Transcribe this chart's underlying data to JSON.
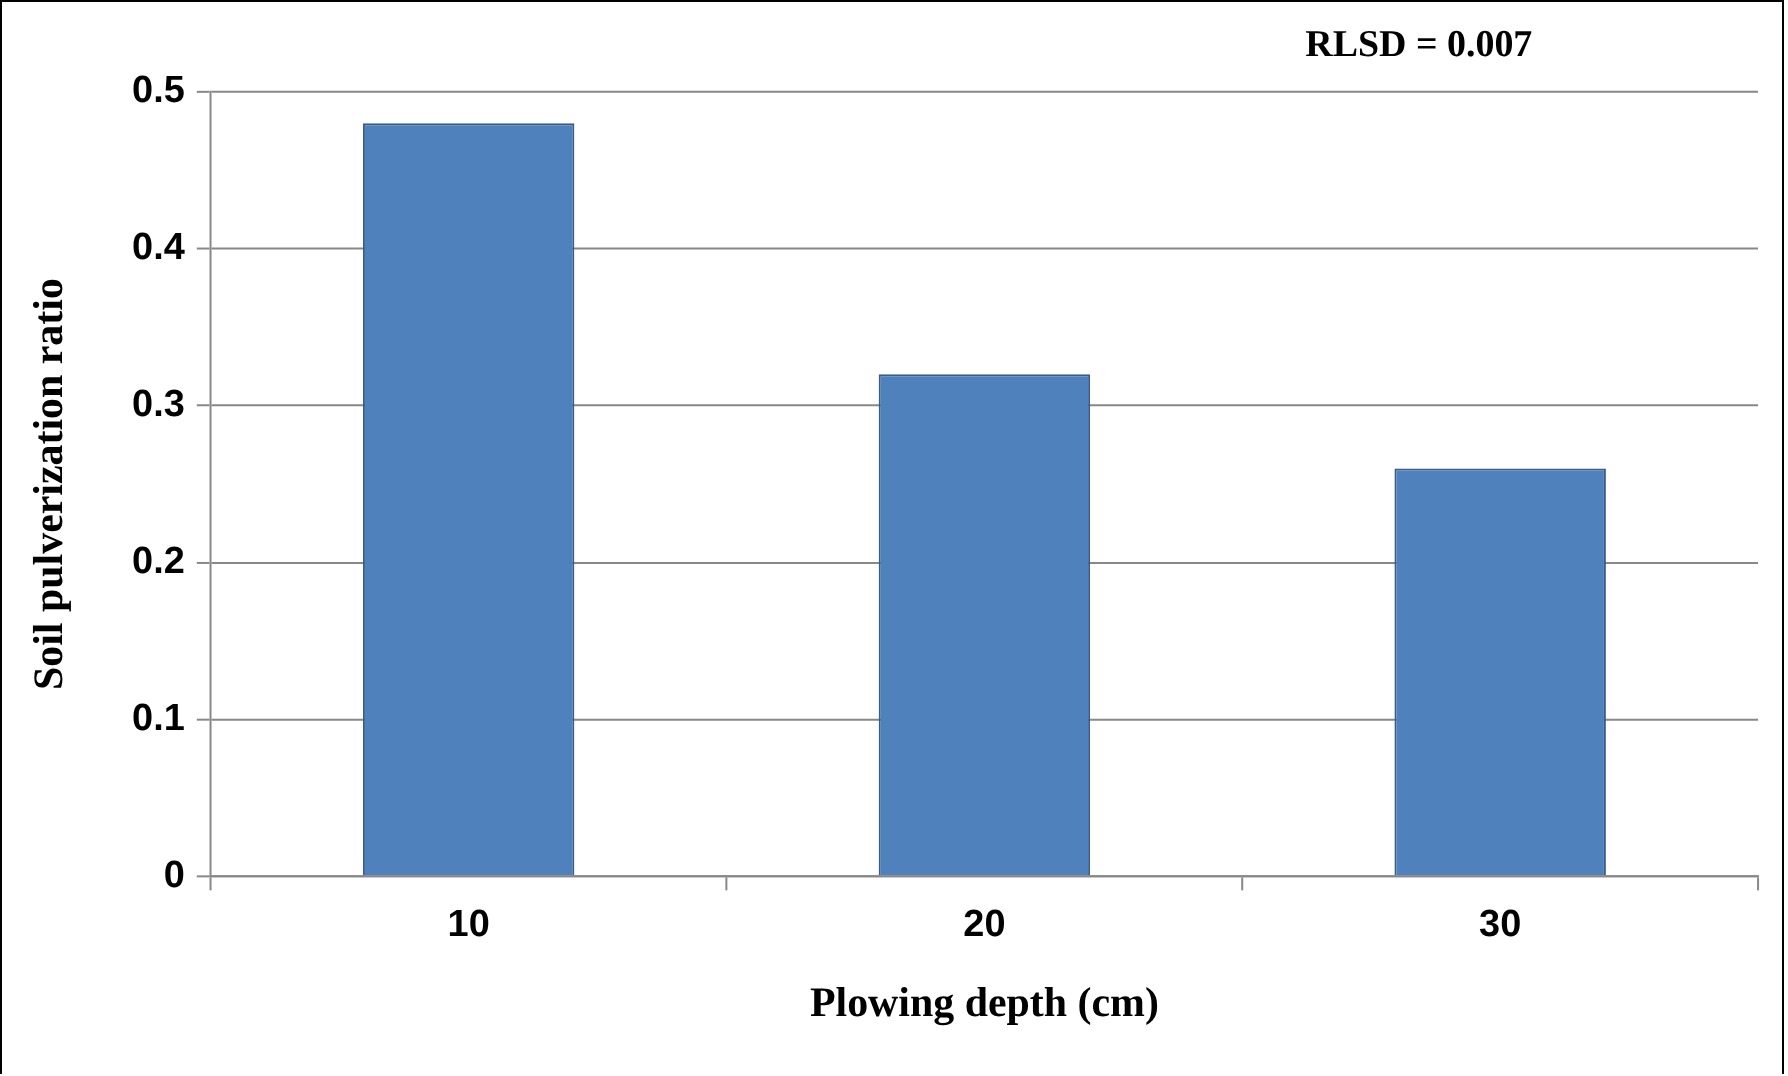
{
  "chart_data": {
    "type": "bar",
    "xlabel": "Plowing depth (cm)",
    "ylabel": "Soil pulverization ratio",
    "categories": [
      "10",
      "20",
      "30"
    ],
    "values": [
      0.48,
      0.32,
      0.26
    ],
    "color": "#4f81bd",
    "ylim": [
      0,
      0.5
    ],
    "yticks": [
      0,
      0.1,
      0.2,
      0.3,
      0.4,
      0.5
    ],
    "grid": "y",
    "legend": false,
    "annotations": [
      "RLSD = 0.007"
    ]
  }
}
